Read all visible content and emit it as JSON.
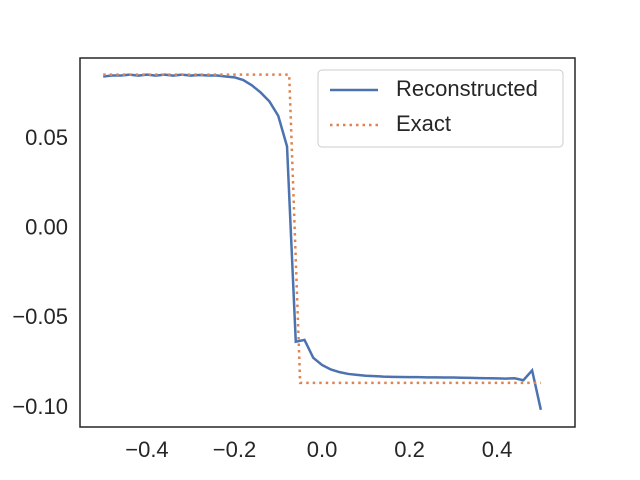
{
  "chart_data": {
    "type": "line",
    "xlim": [
      -0.553,
      0.578
    ],
    "ylim": [
      -0.1106,
      0.0953
    ],
    "xticks": [
      {
        "value": -0.4,
        "label": "−0.4"
      },
      {
        "value": -0.2,
        "label": "−0.2"
      },
      {
        "value": 0,
        "label": "0.0"
      },
      0.2,
      0.4
    ],
    "yticks": [
      {
        "value": -0.1,
        "label": "−0.10"
      },
      {
        "value": -0.05,
        "label": "−0.05"
      },
      {
        "value": 0,
        "label": "0.00"
      },
      0.05
    ],
    "legend": "upper right",
    "series": [
      {
        "name": "Reconstructed",
        "color": "#4c72b0",
        "style": "solid",
        "x": [
          -0.5,
          -0.48,
          -0.46,
          -0.44,
          -0.42,
          -0.4,
          -0.38,
          -0.36,
          -0.34,
          -0.32,
          -0.3,
          -0.28,
          -0.26,
          -0.24,
          -0.22,
          -0.2,
          -0.18,
          -0.16,
          -0.14,
          -0.12,
          -0.1,
          -0.08,
          -0.06,
          -0.04,
          -0.02,
          0,
          0.02,
          0.04,
          0.06,
          0.08,
          0.1,
          0.12,
          0.14,
          0.16,
          0.18,
          0.2,
          0.22,
          0.24,
          0.26,
          0.28,
          0.3,
          0.32,
          0.34,
          0.36,
          0.38,
          0.4,
          0.42,
          0.44,
          0.46,
          0.48,
          0.5
        ],
        "values": [
          0.085,
          0.0855,
          0.0855,
          0.086,
          0.0855,
          0.086,
          0.0855,
          0.086,
          0.0855,
          0.086,
          0.0855,
          0.0858,
          0.0855,
          0.0855,
          0.085,
          0.0845,
          0.083,
          0.08,
          0.076,
          0.071,
          0.063,
          0.046,
          -0.063,
          -0.062,
          -0.072,
          -0.076,
          -0.0785,
          -0.08,
          -0.081,
          -0.0815,
          -0.082,
          -0.0822,
          -0.0825,
          -0.0826,
          -0.0827,
          -0.0828,
          -0.0828,
          -0.0829,
          -0.0829,
          -0.083,
          -0.083,
          -0.0831,
          -0.0832,
          -0.0833,
          -0.0834,
          -0.0835,
          -0.0836,
          -0.0834,
          -0.0845,
          -0.079,
          -0.101
        ]
      },
      {
        "name": "Exact",
        "color": "#dd8452",
        "style": "dotted",
        "x": [
          -0.5,
          -0.075,
          -0.05,
          0.5
        ],
        "values": [
          0.086,
          0.086,
          -0.086,
          -0.086
        ]
      }
    ]
  }
}
